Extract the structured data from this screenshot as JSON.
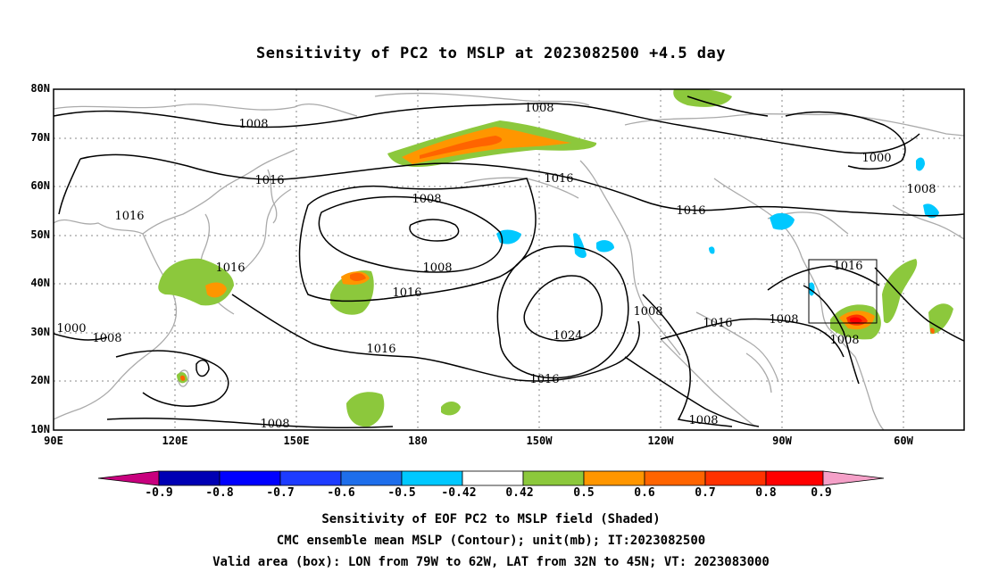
{
  "title": "Sensitivity of PC2 to MSLP at 2023082500 +4.5 day",
  "lat_labels": [
    "80N",
    "70N",
    "60N",
    "50N",
    "40N",
    "30N",
    "20N",
    "10N"
  ],
  "lon_labels": [
    "90E",
    "120E",
    "150E",
    "180",
    "150W",
    "120W",
    "90W",
    "60W"
  ],
  "contour_labels": [
    "1008",
    "1008",
    "1016",
    "1016",
    "1008",
    "1008",
    "1016",
    "1016",
    "1016",
    "1024",
    "1008",
    "1016",
    "1016",
    "1008",
    "1000",
    "1008",
    "1016",
    "1016",
    "1008",
    "1008",
    "1016",
    "1000",
    "1008",
    "1008"
  ],
  "colorbar": {
    "labels": [
      "-0.9",
      "-0.8",
      "-0.7",
      "-0.6",
      "-0.5",
      "-0.42",
      "0.42",
      "0.5",
      "0.6",
      "0.7",
      "0.8",
      "0.9"
    ],
    "colors": [
      "#c8007e",
      "#0000b4",
      "#0000ff",
      "#1e3cff",
      "#1e6eeb",
      "#00c8ff",
      "#ffffff",
      "#8cc83c",
      "#ff9600",
      "#ff6400",
      "#ff3200",
      "#ff0000",
      "#f5a0c8"
    ]
  },
  "footer": {
    "line1": "Sensitivity of EOF PC2 to MSLP field (Shaded)",
    "line2": "CMC ensemble mean MSLP (Contour); unit(mb); IT:2023082500",
    "line3": "Valid area (box): LON from 79W to 62W, LAT from 32N to 45N; VT: 2023083000"
  }
}
